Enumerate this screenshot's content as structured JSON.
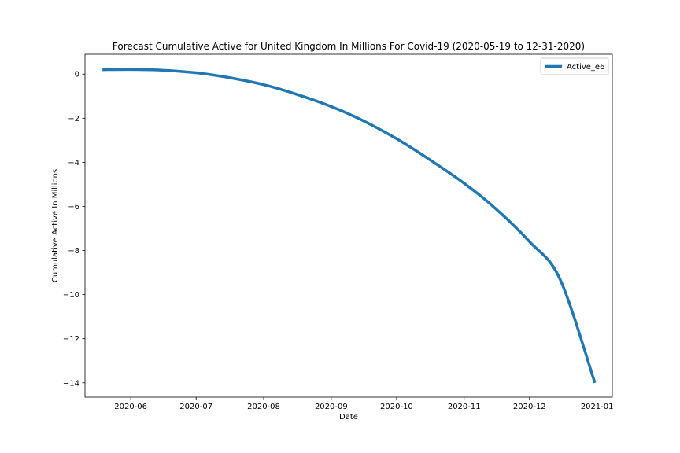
{
  "chart_data": {
    "type": "line",
    "title": "Forecast Cumulative Active for United Kingdom In Millions For Covid-19 (2020-05-19 to 12-31-2020)",
    "xlabel": "Date",
    "ylabel": "Cumulative Active In Millions",
    "x_range": [
      "2020-05-11",
      "2021-01-08"
    ],
    "ylim": [
      -14.65,
      0.9
    ],
    "x_tick_labels": [
      "2020-06",
      "2020-07",
      "2020-08",
      "2020-09",
      "2020-10",
      "2020-11",
      "2020-12",
      "2021-01"
    ],
    "x_tick_dates": [
      "2020-06-01",
      "2020-07-01",
      "2020-08-01",
      "2020-09-01",
      "2020-10-01",
      "2020-11-01",
      "2020-12-01",
      "2021-01-01"
    ],
    "y_ticks": [
      0,
      -2,
      -4,
      -6,
      -8,
      -10,
      -12,
      -14
    ],
    "y_tick_labels": [
      "0",
      "−2",
      "−4",
      "−6",
      "−8",
      "−10",
      "−12",
      "−14"
    ],
    "grid": false,
    "legend_position": "top-right",
    "series": [
      {
        "name": "Active_e6",
        "color": "#1f77b4",
        "x": [
          "2020-05-19",
          "2020-06-01",
          "2020-06-15",
          "2020-07-01",
          "2020-07-15",
          "2020-08-01",
          "2020-08-15",
          "2020-09-01",
          "2020-09-15",
          "2020-10-01",
          "2020-10-15",
          "2020-11-01",
          "2020-11-15",
          "2020-12-01",
          "2020-12-15",
          "2020-12-31"
        ],
        "y": [
          0.2,
          0.21,
          0.18,
          0.06,
          -0.14,
          -0.48,
          -0.88,
          -1.47,
          -2.08,
          -2.93,
          -3.8,
          -4.95,
          -6.06,
          -7.6,
          -9.3,
          -14.0
        ]
      }
    ]
  }
}
